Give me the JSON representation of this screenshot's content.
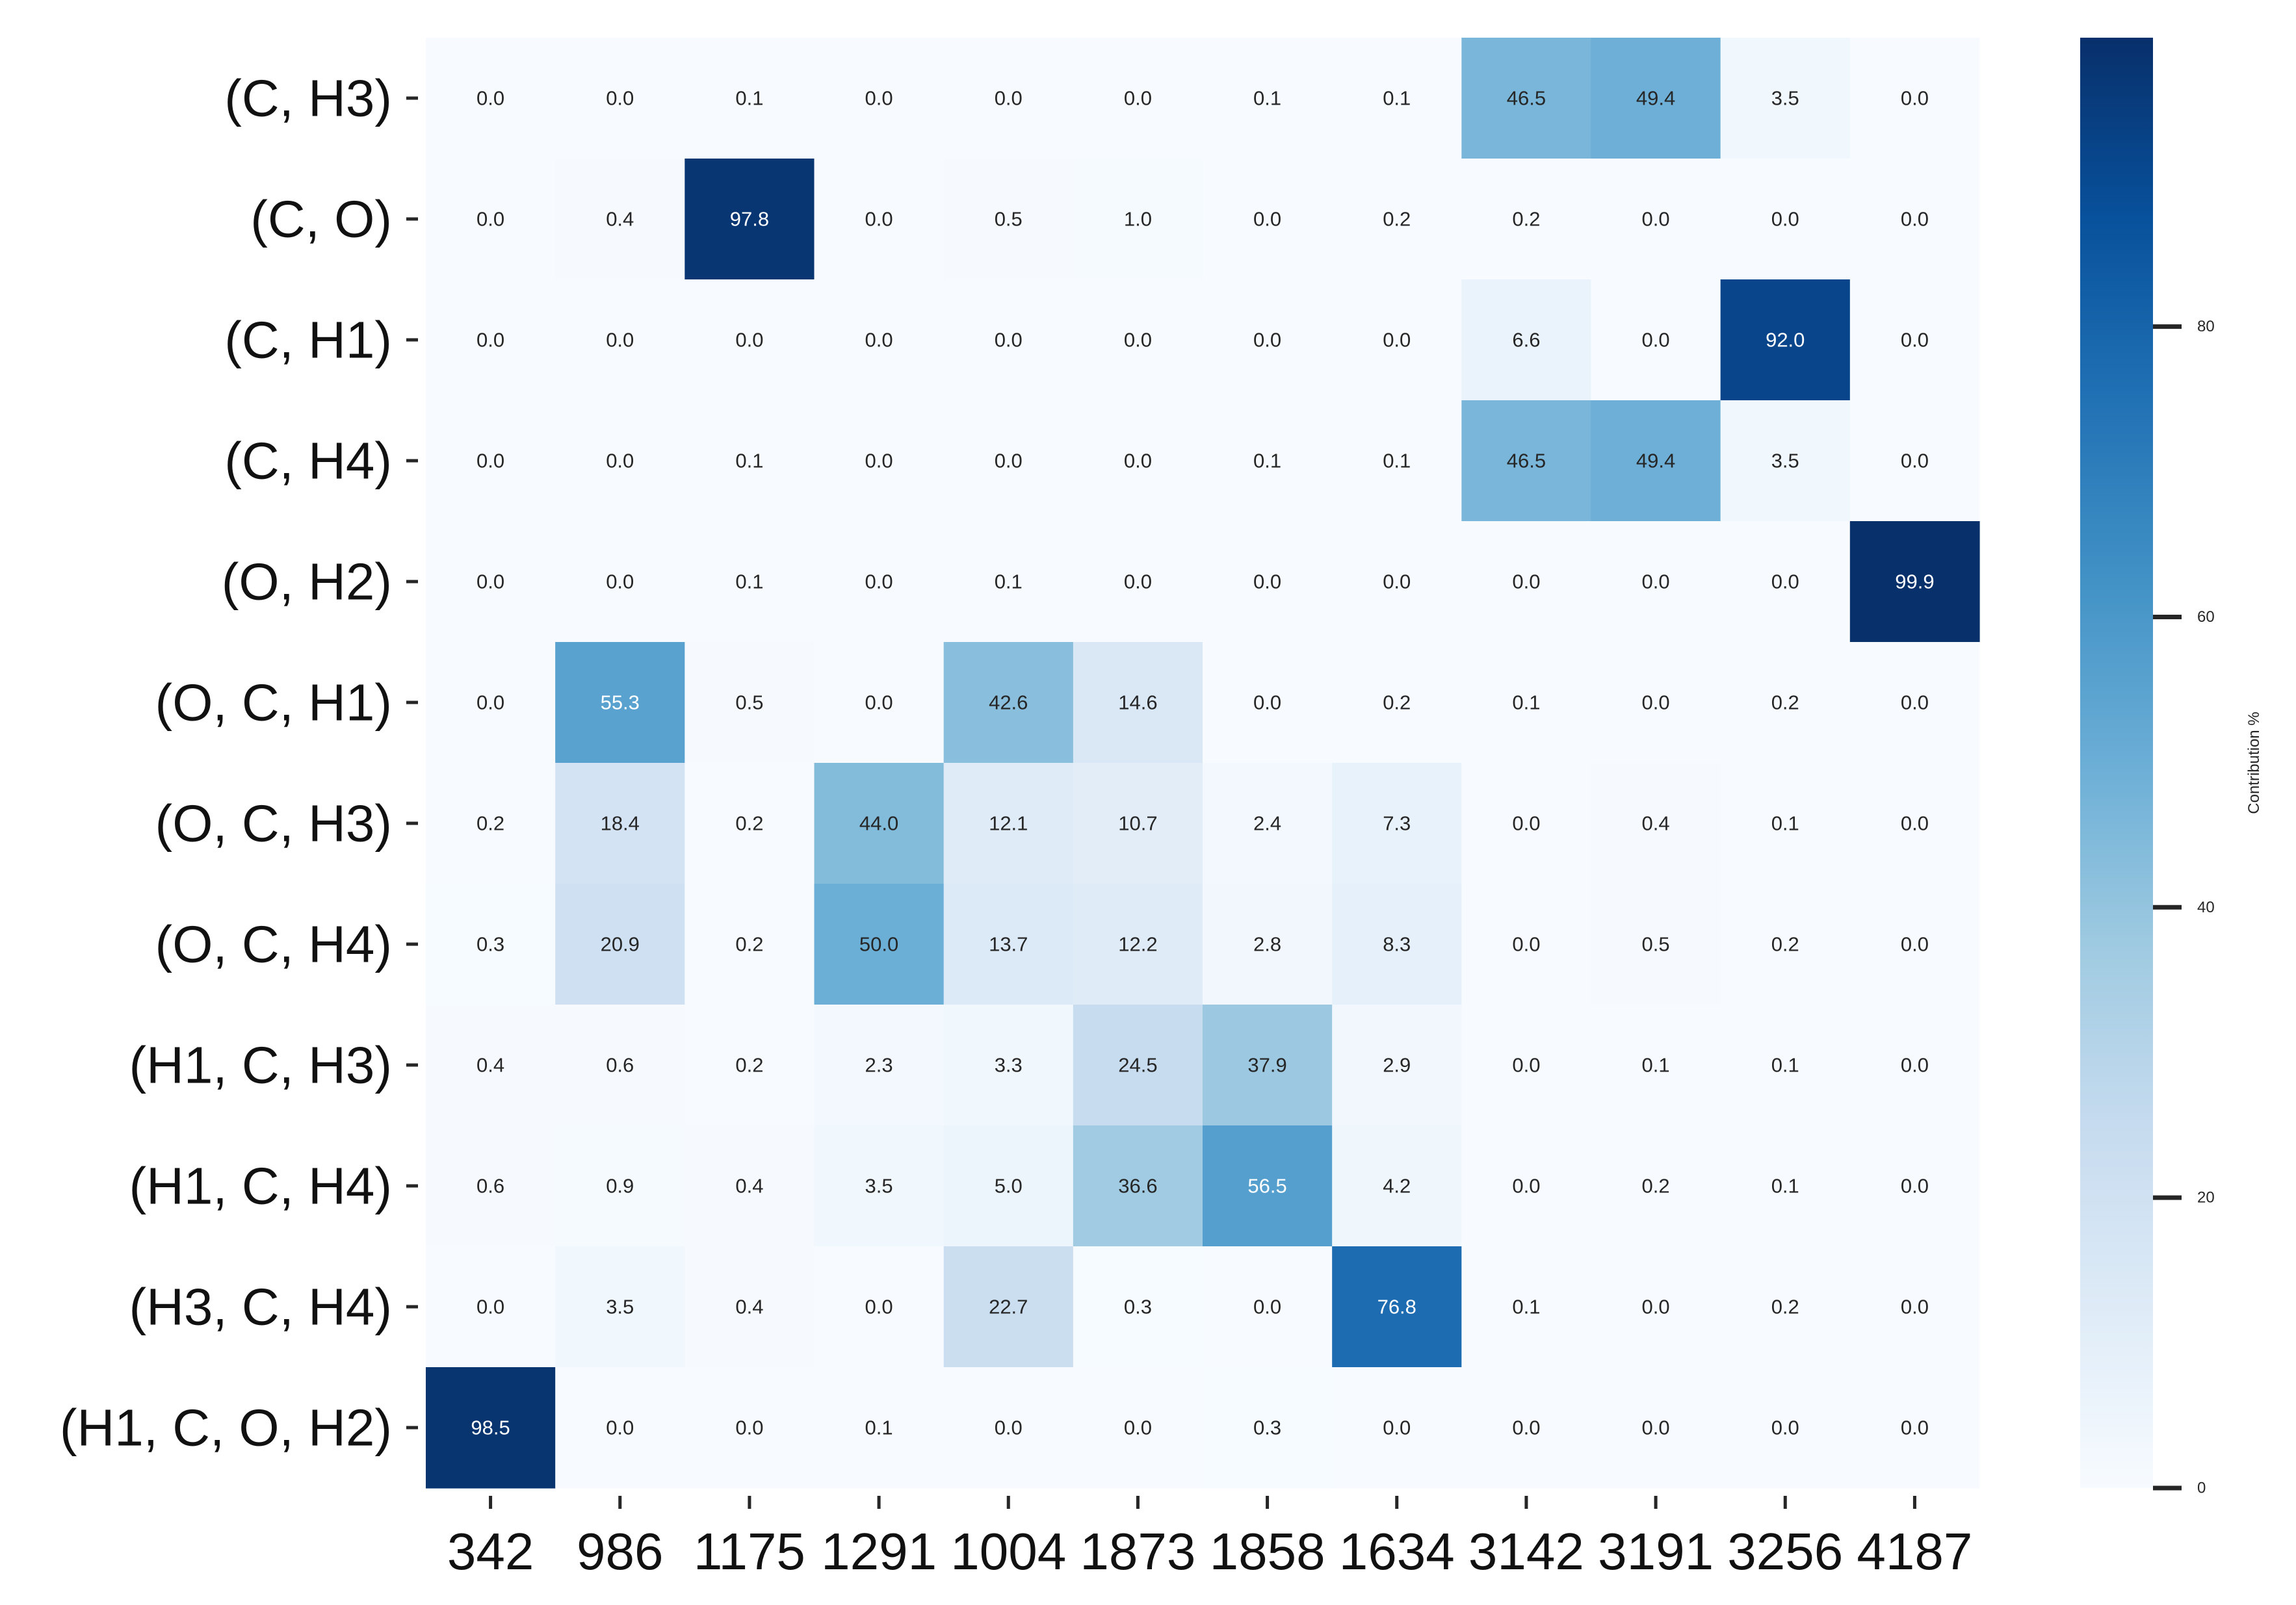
{
  "chart_data": {
    "type": "heatmap",
    "title": "",
    "xlabel": "",
    "ylabel": "",
    "x_categories": [
      "342",
      "986",
      "1175",
      "1291",
      "1004",
      "1873",
      "1858",
      "1634",
      "3142",
      "3191",
      "3256",
      "4187"
    ],
    "y_categories": [
      "(C, H3)",
      "(C, O)",
      "(C, H1)",
      "(C, H4)",
      "(O, H2)",
      "(O, C, H1)",
      "(O, C, H3)",
      "(O, C, H4)",
      "(H1, C, H3)",
      "(H1, C, H4)",
      "(H3, C, H4)",
      "(H1, C, O, H2)"
    ],
    "values": [
      [
        0.0,
        0.0,
        0.1,
        0.0,
        0.0,
        0.0,
        0.1,
        0.1,
        46.5,
        49.4,
        3.5,
        0.0
      ],
      [
        0.0,
        0.4,
        97.8,
        0.0,
        0.5,
        1.0,
        0.0,
        0.2,
        0.2,
        0.0,
        0.0,
        0.0
      ],
      [
        0.0,
        0.0,
        0.0,
        0.0,
        0.0,
        0.0,
        0.0,
        0.0,
        6.6,
        0.0,
        92.0,
        0.0
      ],
      [
        0.0,
        0.0,
        0.1,
        0.0,
        0.0,
        0.0,
        0.1,
        0.1,
        46.5,
        49.4,
        3.5,
        0.0
      ],
      [
        0.0,
        0.0,
        0.1,
        0.0,
        0.1,
        0.0,
        0.0,
        0.0,
        0.0,
        0.0,
        0.0,
        99.9
      ],
      [
        0.0,
        55.3,
        0.5,
        0.0,
        42.6,
        14.6,
        0.0,
        0.2,
        0.1,
        0.0,
        0.2,
        0.0
      ],
      [
        0.2,
        18.4,
        0.2,
        44.0,
        12.1,
        10.7,
        2.4,
        7.3,
        0.0,
        0.4,
        0.1,
        0.0
      ],
      [
        0.3,
        20.9,
        0.2,
        50.0,
        13.7,
        12.2,
        2.8,
        8.3,
        0.0,
        0.5,
        0.2,
        0.0
      ],
      [
        0.4,
        0.6,
        0.2,
        2.3,
        3.3,
        24.5,
        37.9,
        2.9,
        0.0,
        0.1,
        0.1,
        0.0
      ],
      [
        0.6,
        0.9,
        0.4,
        3.5,
        5.0,
        36.6,
        56.5,
        4.2,
        0.0,
        0.2,
        0.1,
        0.0
      ],
      [
        0.0,
        3.5,
        0.4,
        0.0,
        22.7,
        0.3,
        0.0,
        76.8,
        0.1,
        0.0,
        0.2,
        0.0
      ],
      [
        98.5,
        0.0,
        0.0,
        0.1,
        0.0,
        0.0,
        0.3,
        0.0,
        0.0,
        0.0,
        0.0,
        0.0
      ]
    ],
    "colorbar": {
      "label": "Contribution %",
      "range": [
        0,
        99.9
      ],
      "ticks": [
        0,
        20,
        40,
        60,
        80
      ],
      "tick_labels": [
        "0",
        "20",
        "40",
        "60",
        "80"
      ],
      "colormap": "Blues",
      "colormap_stops": [
        "#f7fbff",
        "#deebf7",
        "#c6dbef",
        "#9ecae1",
        "#6baed6",
        "#4292c6",
        "#2171b5",
        "#08519c",
        "#08306b"
      ]
    },
    "annotation_format": "one decimal",
    "annotation_light_color": "#ffffff",
    "annotation_dark_color": "#262626",
    "grid": false
  }
}
